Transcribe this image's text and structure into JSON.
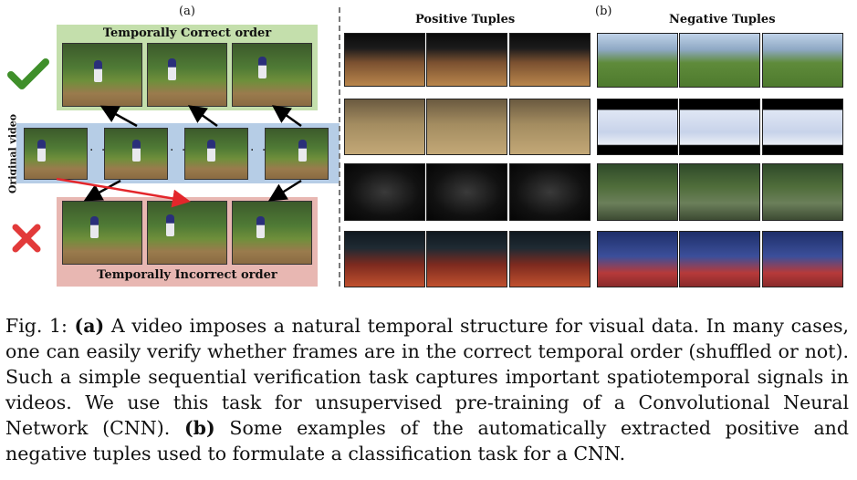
{
  "panel_a": {
    "label": "(a)",
    "correct_title": "Temporally Correct order",
    "incorrect_title": "Temporally Incorrect order",
    "side_label": "Original video",
    "ellipsis": "· ·",
    "check_color": "#3f8f2a",
    "cross_color": "#e23a3a"
  },
  "panel_b": {
    "label": "(b)",
    "positive_title": "Positive Tuples",
    "negative_title": "Negative Tuples"
  },
  "caption": {
    "prefix": "Fig. 1: ",
    "a_tag": "(a)",
    "a_text": " A video imposes a natural temporal structure for visual data. In many cases, one can easily verify whether frames are in the correct temporal order (shuffled or not). Such a simple sequential verification task captures important spatiotemporal signals in videos. We use this task for unsupervised pre-training of a Convolutional Neural Network (CNN). ",
    "b_tag": "(b)",
    "b_text": " Some examples of the automatically extracted positive and negative tuples used to formulate a classification task for a CNN."
  }
}
